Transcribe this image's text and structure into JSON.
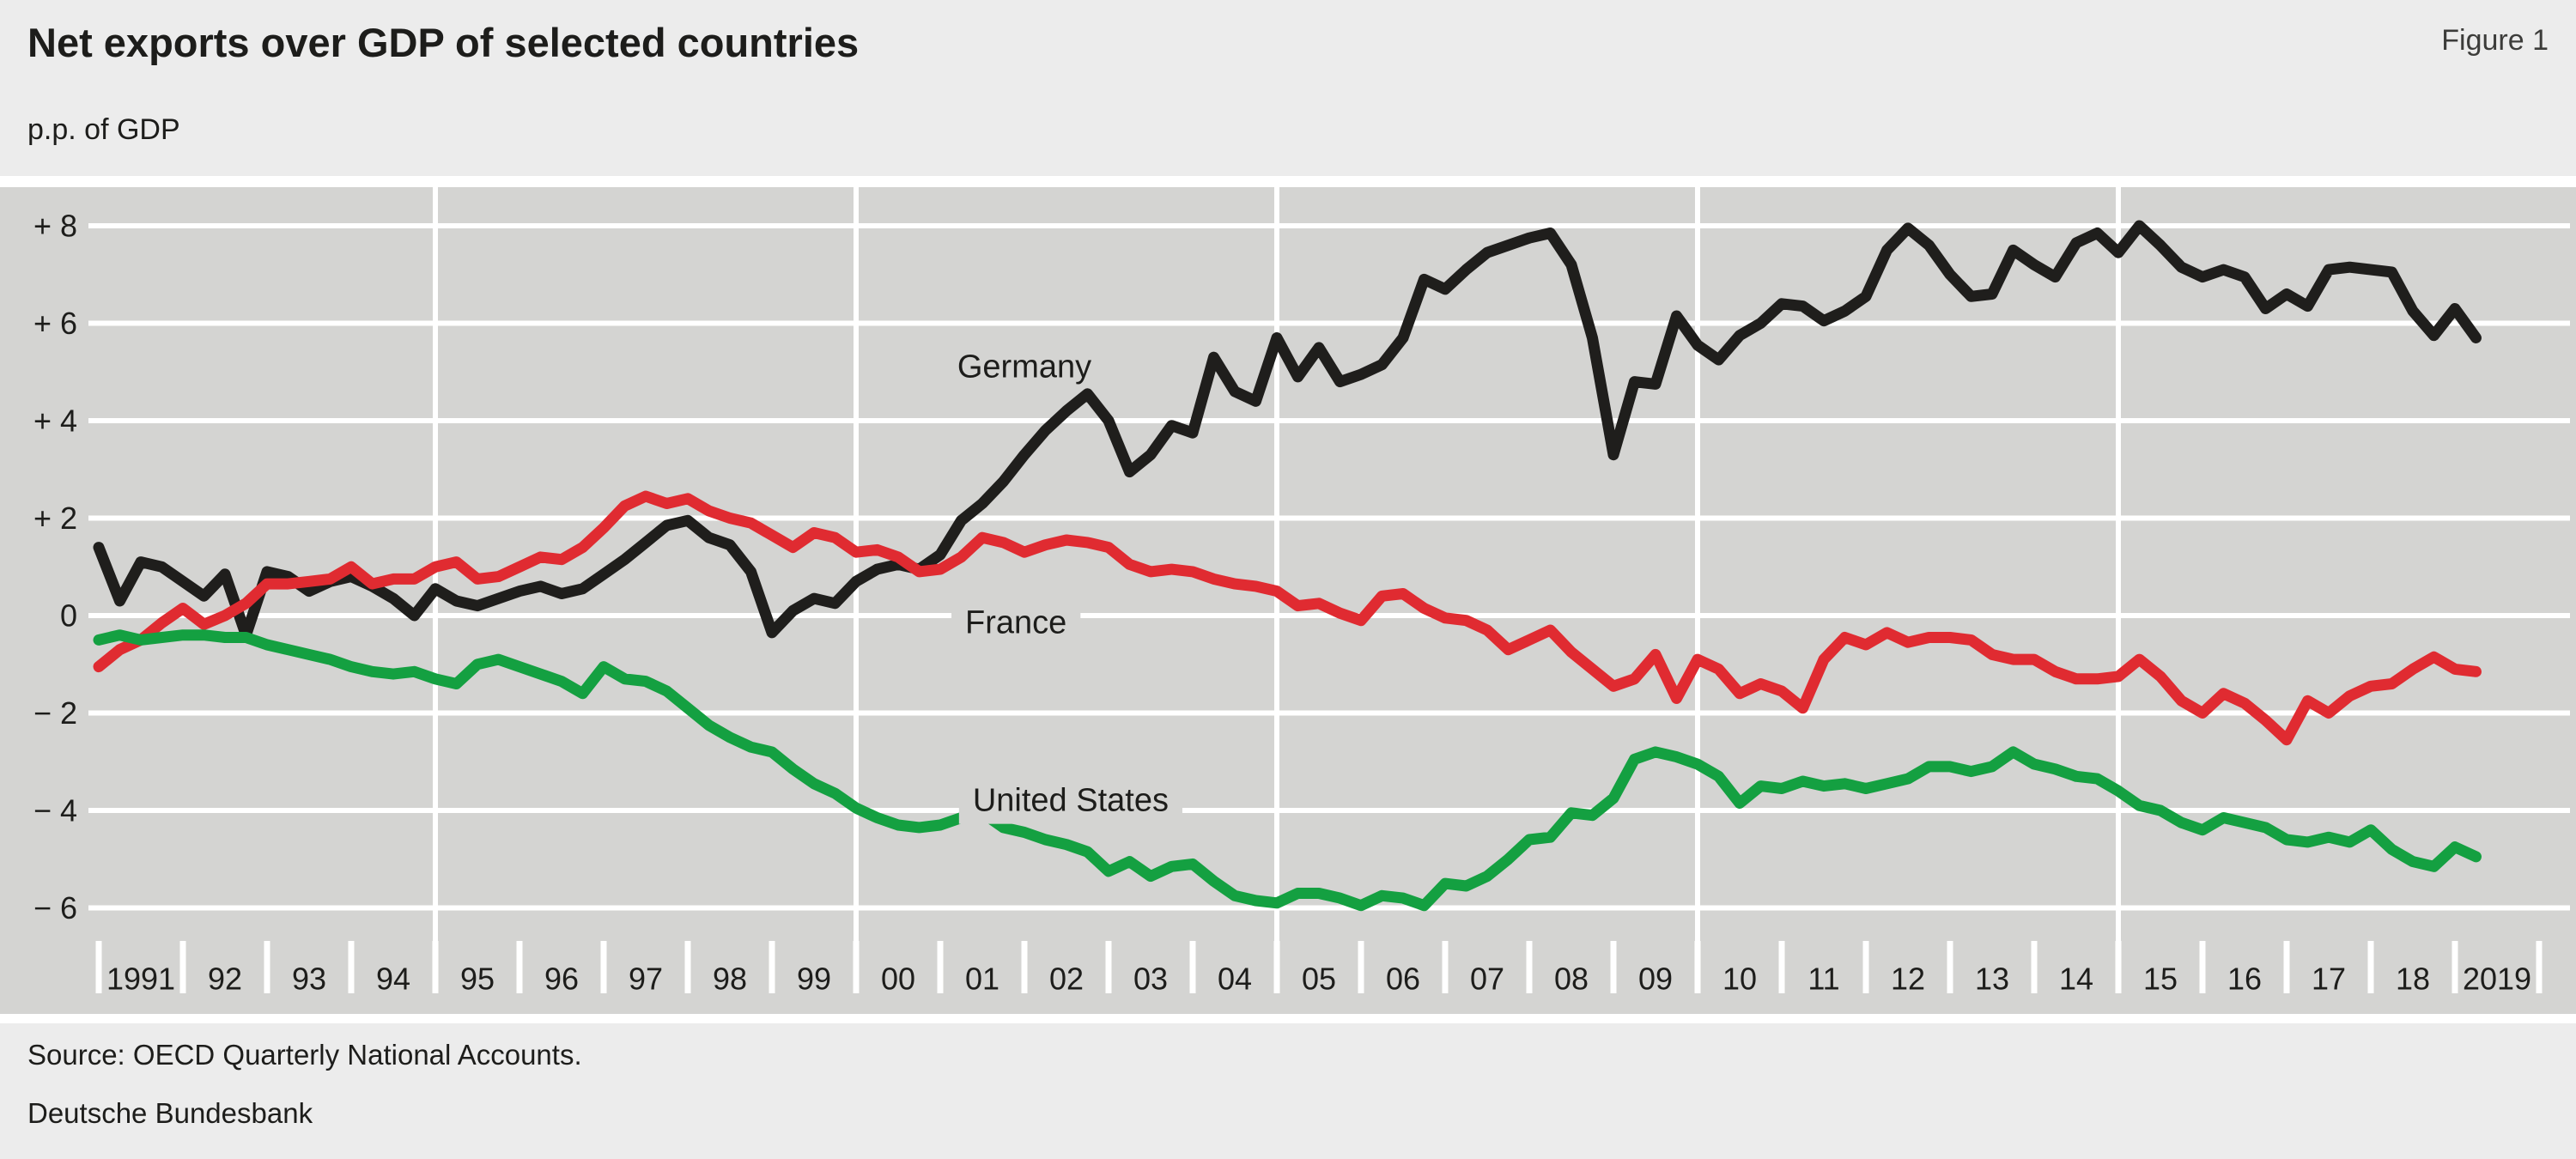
{
  "header": {
    "title": "Net exports over GDP of selected countries",
    "figure_label": "Figure 1",
    "unit_label": "p.p. of GDP"
  },
  "footer": {
    "source": "Source: OECD Quarterly National Accounts.",
    "publisher": "Deutsche Bundesbank"
  },
  "colors": {
    "germany": "#1f1e1c",
    "france": "#e02b31",
    "united_states": "#14a041",
    "plot_bg": "#d4d4d2",
    "page_bg": "#ececec",
    "grid": "#ffffff",
    "text": "#1d1d1b"
  },
  "chart_data": {
    "type": "line",
    "title": "Net exports over GDP of selected countries",
    "ylabel": "p.p. of GDP",
    "x_start_year": 1991,
    "x_step_years": 0.25,
    "x_end_year": 2019.25,
    "ylim": [
      -8.2,
      8.8
    ],
    "grid": "on",
    "y_ticks": [
      {
        "value": 8,
        "label": "+ 8"
      },
      {
        "value": 6,
        "label": "+ 6"
      },
      {
        "value": 4,
        "label": "+ 4"
      },
      {
        "value": 2,
        "label": "+ 2"
      },
      {
        "value": 0,
        "label": "0"
      },
      {
        "value": -2,
        "label": "− 2"
      },
      {
        "value": -4,
        "label": "− 4"
      },
      {
        "value": -6,
        "label": "− 6"
      }
    ],
    "x_year_labels": [
      "1991",
      "92",
      "93",
      "94",
      "95",
      "96",
      "97",
      "98",
      "99",
      "00",
      "01",
      "02",
      "03",
      "04",
      "05",
      "06",
      "07",
      "08",
      "09",
      "10",
      "11",
      "12",
      "13",
      "14",
      "15",
      "16",
      "17",
      "18",
      "2019"
    ],
    "vertical_grid_years": [
      1995,
      2000,
      2005,
      2010,
      2015
    ],
    "series": [
      {
        "name": "Germany",
        "color_key": "germany",
        "label_halo": false,
        "label_pos": {
          "year": 2002.0,
          "value": 5.1
        },
        "values": [
          1.4,
          0.3,
          1.1,
          1.0,
          0.7,
          0.4,
          0.85,
          -0.4,
          0.9,
          0.8,
          0.5,
          0.7,
          0.8,
          0.6,
          0.35,
          0.0,
          0.55,
          0.3,
          0.2,
          0.35,
          0.5,
          0.6,
          0.45,
          0.55,
          0.85,
          1.15,
          1.5,
          1.85,
          1.95,
          1.6,
          1.45,
          0.9,
          -0.35,
          0.1,
          0.35,
          0.25,
          0.7,
          0.95,
          1.05,
          0.95,
          1.25,
          1.95,
          2.3,
          2.75,
          3.3,
          3.8,
          4.2,
          4.55,
          4.0,
          2.95,
          3.3,
          3.9,
          3.75,
          5.3,
          4.6,
          4.4,
          5.7,
          4.9,
          5.5,
          4.8,
          4.95,
          5.15,
          5.7,
          6.9,
          6.7,
          7.1,
          7.45,
          7.6,
          7.75,
          7.85,
          7.2,
          5.7,
          3.3,
          4.8,
          4.75,
          6.15,
          5.55,
          5.25,
          5.75,
          6.0,
          6.4,
          6.35,
          6.05,
          6.25,
          6.55,
          7.5,
          7.95,
          7.6,
          7.0,
          6.55,
          6.6,
          7.5,
          7.2,
          6.95,
          7.65,
          7.85,
          7.45,
          8.0,
          7.6,
          7.15,
          6.95,
          7.1,
          6.95,
          6.3,
          6.6,
          6.35,
          7.1,
          7.15,
          7.1,
          7.05,
          6.25,
          5.75,
          6.3,
          5.7
        ]
      },
      {
        "name": "France",
        "color_key": "france",
        "label_halo": true,
        "label_pos": {
          "year": 2001.9,
          "value": -0.15
        },
        "values": [
          -1.05,
          -0.7,
          -0.5,
          -0.15,
          0.15,
          -0.18,
          0.0,
          0.25,
          0.65,
          0.65,
          0.7,
          0.75,
          1.0,
          0.65,
          0.75,
          0.75,
          1.0,
          1.1,
          0.75,
          0.8,
          1.0,
          1.2,
          1.15,
          1.4,
          1.8,
          2.25,
          2.45,
          2.3,
          2.4,
          2.15,
          2.0,
          1.9,
          1.65,
          1.4,
          1.7,
          1.6,
          1.3,
          1.35,
          1.2,
          0.9,
          0.95,
          1.2,
          1.6,
          1.5,
          1.3,
          1.45,
          1.55,
          1.5,
          1.4,
          1.05,
          0.9,
          0.95,
          0.9,
          0.75,
          0.65,
          0.6,
          0.5,
          0.2,
          0.25,
          0.05,
          -0.1,
          0.4,
          0.45,
          0.15,
          -0.05,
          -0.1,
          -0.3,
          -0.7,
          -0.5,
          -0.3,
          -0.75,
          -1.1,
          -1.45,
          -1.3,
          -0.8,
          -1.7,
          -0.9,
          -1.1,
          -1.6,
          -1.4,
          -1.55,
          -1.9,
          -0.9,
          -0.45,
          -0.6,
          -0.35,
          -0.55,
          -0.45,
          -0.45,
          -0.5,
          -0.8,
          -0.9,
          -0.9,
          -1.15,
          -1.3,
          -1.3,
          -1.25,
          -0.9,
          -1.25,
          -1.75,
          -2.0,
          -1.6,
          -1.8,
          -2.15,
          -2.55,
          -1.75,
          -2.0,
          -1.65,
          -1.45,
          -1.4,
          -1.1,
          -0.85,
          -1.1,
          -1.15
        ]
      },
      {
        "name": "United States",
        "color_key": "united_states",
        "label_halo": true,
        "label_pos": {
          "year": 2002.55,
          "value": -3.8
        },
        "values": [
          -0.5,
          -0.4,
          -0.5,
          -0.45,
          -0.4,
          -0.4,
          -0.45,
          -0.45,
          -0.6,
          -0.7,
          -0.8,
          -0.9,
          -1.05,
          -1.15,
          -1.2,
          -1.15,
          -1.3,
          -1.4,
          -1.0,
          -0.9,
          -1.05,
          -1.2,
          -1.35,
          -1.6,
          -1.05,
          -1.3,
          -1.35,
          -1.55,
          -1.9,
          -2.25,
          -2.5,
          -2.7,
          -2.8,
          -3.15,
          -3.45,
          -3.65,
          -3.95,
          -4.15,
          -4.3,
          -4.35,
          -4.3,
          -4.15,
          -4.05,
          -4.35,
          -4.45,
          -4.6,
          -4.7,
          -4.85,
          -5.25,
          -5.05,
          -5.35,
          -5.15,
          -5.1,
          -5.45,
          -5.75,
          -5.85,
          -5.9,
          -5.7,
          -5.7,
          -5.8,
          -5.95,
          -5.75,
          -5.8,
          -5.95,
          -5.5,
          -5.55,
          -5.35,
          -5.0,
          -4.6,
          -4.55,
          -4.05,
          -4.1,
          -3.75,
          -2.95,
          -2.8,
          -2.9,
          -3.05,
          -3.3,
          -3.85,
          -3.5,
          -3.55,
          -3.4,
          -3.5,
          -3.45,
          -3.55,
          -3.45,
          -3.35,
          -3.1,
          -3.1,
          -3.2,
          -3.1,
          -2.8,
          -3.05,
          -3.15,
          -3.3,
          -3.35,
          -3.6,
          -3.9,
          -4.0,
          -4.25,
          -4.4,
          -4.15,
          -4.25,
          -4.35,
          -4.6,
          -4.65,
          -4.55,
          -4.65,
          -4.4,
          -4.8,
          -5.05,
          -5.15,
          -4.75,
          -4.95
        ]
      }
    ]
  }
}
